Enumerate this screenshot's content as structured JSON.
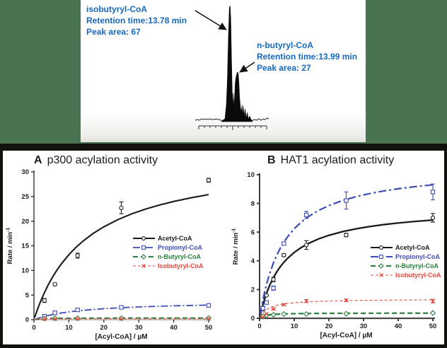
{
  "background_color": "#4a7351",
  "frame_color": "#12110b",
  "chromatogram": {
    "text_color": "#1569c0",
    "annotations": [
      {
        "name": "isobutyryl-CoA",
        "retention": "Retention time:13.78 min",
        "area": "Peak area: 67"
      },
      {
        "name": "n-butyryl-CoA",
        "retention": "Retention time:13.99 min",
        "area": "Peak area: 27"
      }
    ]
  },
  "chart_data": [
    {
      "id": "chromatogram",
      "type": "area",
      "description": "HPLC trace with two overlapping peaks",
      "peaks": [
        {
          "name": "isobutyryl-CoA",
          "retention_time_min": 13.78,
          "peak_area": 67
        },
        {
          "name": "n-butyryl-CoA",
          "retention_time_min": 13.99,
          "peak_area": 27
        }
      ]
    },
    {
      "id": "p300",
      "type": "scatter",
      "panel_label": "A",
      "title": "p300 acylation activity",
      "xlabel": "[Acyl-CoA] / µM",
      "ylabel": "Rate / min",
      "ylabel_sup": "-1",
      "xlim": [
        0,
        50
      ],
      "ylim": [
        0,
        30
      ],
      "xticks": [
        0,
        10,
        20,
        30,
        40,
        50
      ],
      "yticks": [
        0,
        5,
        10,
        15,
        20,
        25,
        30
      ],
      "legend_position": "middle-right",
      "series": [
        {
          "name": "Acetyl-CoA",
          "color": "#1a1a1a",
          "marker": "circle",
          "dash": "",
          "lw": 2.1,
          "fit": {
            "vmax": 33,
            "km": 15
          },
          "points": [
            [
              3,
              3.9,
              0.4
            ],
            [
              6,
              7.2,
              0.25
            ],
            [
              12.5,
              13.0,
              0.5
            ],
            [
              25,
              22.7,
              1.2
            ],
            [
              50,
              28.3,
              0.4
            ]
          ]
        },
        {
          "name": "Propionyl-CoA",
          "color": "#3d4db7",
          "marker": "square",
          "dash": "10,3,2,3",
          "lw": 1.8,
          "fit": {
            "vmax": 3.8,
            "km": 14
          },
          "points": [
            [
              3,
              0.7,
              0
            ],
            [
              6,
              1.4,
              0
            ],
            [
              12.5,
              2.0,
              0.15
            ],
            [
              25,
              2.5,
              0.2
            ],
            [
              50,
              2.9,
              0.25
            ]
          ]
        },
        {
          "name": "n-Butyryl-CoA",
          "color": "#2b7e3d",
          "marker": "diamond",
          "dash": "7,4",
          "lw": 2,
          "fit": {
            "vmax": 0.36,
            "km": 2
          },
          "points": [
            [
              3,
              0.25,
              0
            ],
            [
              6,
              0.3,
              0
            ],
            [
              12.5,
              0.3,
              0
            ],
            [
              25,
              0.3,
              0
            ],
            [
              50,
              0.35,
              0
            ]
          ]
        },
        {
          "name": "Isobutyryl-CoA",
          "color": "#e2493f",
          "marker": "x",
          "dash": "4,3",
          "lw": 1.1,
          "fit": {
            "vmax": 0.2,
            "km": 1.5
          },
          "points": [
            [
              3,
              0.15,
              0
            ],
            [
              6,
              0.15,
              0
            ],
            [
              12.5,
              0.2,
              0
            ],
            [
              25,
              0.2,
              0
            ],
            [
              50,
              0.2,
              0
            ]
          ]
        }
      ]
    },
    {
      "id": "hat1",
      "type": "scatter",
      "panel_label": "B",
      "title": "HAT1 acylation activity",
      "xlabel": "[Acyl-CoA] / µM",
      "ylabel": "Rate / min",
      "ylabel_sup": "-1",
      "xlim": [
        0,
        50
      ],
      "ylim": [
        0,
        10
      ],
      "xticks": [
        0,
        10,
        20,
        30,
        40,
        50
      ],
      "yticks": [
        0,
        2,
        4,
        6,
        8,
        10
      ],
      "legend_position": "middle-right",
      "series": [
        {
          "name": "Acetyl-CoA",
          "color": "#1a1a1a",
          "marker": "circle",
          "dash": "",
          "lw": 2.3,
          "fit": {
            "vmax": 7.8,
            "km": 7
          },
          "points": [
            [
              1,
              0.65,
              0
            ],
            [
              2,
              1.6,
              0
            ],
            [
              4,
              2.7,
              0.15
            ],
            [
              7,
              4.4,
              0.1
            ],
            [
              13.5,
              5.1,
              0.3
            ],
            [
              25,
              5.8,
              0.12
            ],
            [
              50,
              7.0,
              0.3
            ]
          ]
        },
        {
          "name": "Propionyl-CoA",
          "color": "#3d4db7",
          "marker": "square",
          "dash": "11,4,3,4",
          "lw": 2.2,
          "fit": {
            "vmax": 10.6,
            "km": 7
          },
          "points": [
            [
              1,
              0.7,
              0.15
            ],
            [
              2,
              1.1,
              0.1
            ],
            [
              4,
              2.1,
              0.15
            ],
            [
              7,
              5.2,
              0.1
            ],
            [
              13.5,
              7.2,
              0.25
            ],
            [
              25,
              8.2,
              0.6
            ],
            [
              50,
              8.8,
              0.55
            ]
          ]
        },
        {
          "name": "n-Butyryl-CoA",
          "color": "#2b7e3d",
          "marker": "diamond",
          "dash": "7,4",
          "lw": 2.2,
          "fit": {
            "vmax": 0.37,
            "km": 1.5
          },
          "points": [
            [
              1,
              0.15,
              0
            ],
            [
              2,
              0.2,
              0
            ],
            [
              4,
              0.25,
              0
            ],
            [
              7,
              0.3,
              0
            ],
            [
              13.5,
              0.3,
              0
            ],
            [
              25,
              0.32,
              0
            ],
            [
              50,
              0.37,
              0
            ]
          ]
        },
        {
          "name": "Isobutyryl-CoA",
          "color": "#e2493f",
          "marker": "x",
          "dash": "4,3",
          "lw": 1.1,
          "fit": {
            "vmax": 1.35,
            "km": 2.5
          },
          "points": [
            [
              1,
              0.1,
              0
            ],
            [
              2,
              0.3,
              0
            ],
            [
              4,
              0.65,
              0.05
            ],
            [
              7,
              0.95,
              0.05
            ],
            [
              13.5,
              1.2,
              0.1
            ],
            [
              25,
              1.25,
              0.08
            ],
            [
              50,
              1.2,
              0.12
            ]
          ]
        }
      ]
    }
  ]
}
